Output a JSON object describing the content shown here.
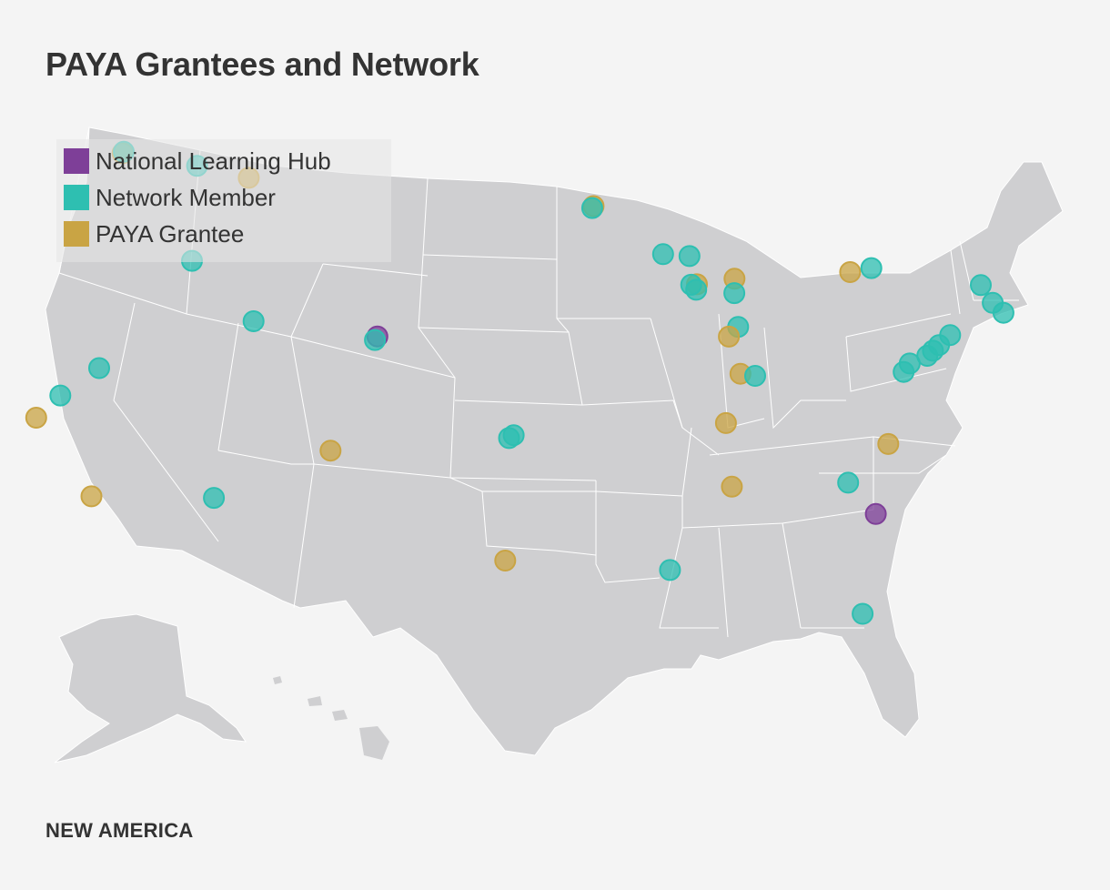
{
  "title": "PAYA Grantees and Network",
  "footer_logo": "NEW AMERICA",
  "colors": {
    "hub": "#7e3f98",
    "member": "#2ebfb1",
    "grantee": "#c9a444",
    "land": "#cfcfd1",
    "borders": "#ffffff",
    "background": "#f4f4f4"
  },
  "legend": [
    {
      "key": "hub",
      "label": "National Learning Hub"
    },
    {
      "key": "member",
      "label": "Network Member"
    },
    {
      "key": "grantee",
      "label": "PAYA Grantee"
    }
  ],
  "map": {
    "region": "United States",
    "markers": [
      {
        "type": "grantee",
        "lat": 48.75,
        "lon": -122.5
      },
      {
        "type": "member",
        "lat": 48.8,
        "lon": -122.45
      },
      {
        "type": "member",
        "lat": 47.67,
        "lon": -117.42
      },
      {
        "type": "grantee",
        "lat": 46.87,
        "lon": -113.99
      },
      {
        "type": "member",
        "lat": 43.62,
        "lon": -116.2
      },
      {
        "type": "member",
        "lat": 39.53,
        "lon": -119.81
      },
      {
        "type": "member",
        "lat": 38.58,
        "lon": -121.49
      },
      {
        "type": "grantee",
        "lat": 37.77,
        "lon": -122.42
      },
      {
        "type": "member",
        "lat": 40.76,
        "lon": -111.89
      },
      {
        "type": "hub",
        "lat": 39.74,
        "lon": -104.99
      },
      {
        "type": "member",
        "lat": 39.6,
        "lon": -105.1
      },
      {
        "type": "grantee",
        "lat": 34.05,
        "lon": -118.24
      },
      {
        "type": "member",
        "lat": 33.45,
        "lon": -112.07
      },
      {
        "type": "grantee",
        "lat": 35.08,
        "lon": -106.65
      },
      {
        "type": "member",
        "lat": 35.47,
        "lon": -97.52
      },
      {
        "type": "member",
        "lat": 35.35,
        "lon": -97.75
      },
      {
        "type": "grantee",
        "lat": 30.27,
        "lon": -97.74
      },
      {
        "type": "grantee",
        "lat": 44.98,
        "lon": -93.27
      },
      {
        "type": "member",
        "lat": 44.9,
        "lon": -93.35
      },
      {
        "type": "member",
        "lat": 43.07,
        "lon": -89.4
      },
      {
        "type": "member",
        "lat": 43.04,
        "lon": -87.91
      },
      {
        "type": "grantee",
        "lat": 41.88,
        "lon": -87.63
      },
      {
        "type": "member",
        "lat": 41.85,
        "lon": -87.95
      },
      {
        "type": "member",
        "lat": 41.65,
        "lon": -87.7
      },
      {
        "type": "grantee",
        "lat": 42.2,
        "lon": -85.5
      },
      {
        "type": "member",
        "lat": 41.6,
        "lon": -85.6
      },
      {
        "type": "member",
        "lat": 40.2,
        "lon": -85.6
      },
      {
        "type": "grantee",
        "lat": 39.77,
        "lon": -86.16
      },
      {
        "type": "grantee",
        "lat": 38.25,
        "lon": -85.76
      },
      {
        "type": "member",
        "lat": 38.2,
        "lon": -85.0
      },
      {
        "type": "grantee",
        "lat": 42.89,
        "lon": -78.88
      },
      {
        "type": "member",
        "lat": 43.16,
        "lon": -77.61
      },
      {
        "type": "member",
        "lat": 43.05,
        "lon": -71.46
      },
      {
        "type": "member",
        "lat": 42.36,
        "lon": -71.06
      },
      {
        "type": "member",
        "lat": 42.0,
        "lon": -70.6
      },
      {
        "type": "member",
        "lat": 40.71,
        "lon": -74.0
      },
      {
        "type": "member",
        "lat": 40.22,
        "lon": -74.76
      },
      {
        "type": "member",
        "lat": 39.95,
        "lon": -75.17
      },
      {
        "type": "member",
        "lat": 39.7,
        "lon": -75.55
      },
      {
        "type": "member",
        "lat": 39.29,
        "lon": -76.61
      },
      {
        "type": "member",
        "lat": 38.9,
        "lon": -77.04
      },
      {
        "type": "grantee",
        "lat": 35.78,
        "lon": -78.64
      },
      {
        "type": "grantee",
        "lat": 36.16,
        "lon": -86.78
      },
      {
        "type": "member",
        "lat": 34.0,
        "lon": -81.03
      },
      {
        "type": "hub",
        "lat": 32.78,
        "lon": -79.93
      },
      {
        "type": "grantee",
        "lat": 33.52,
        "lon": -86.8
      },
      {
        "type": "member",
        "lat": 29.95,
        "lon": -90.07
      },
      {
        "type": "member",
        "lat": 28.54,
        "lon": -81.38
      }
    ]
  }
}
